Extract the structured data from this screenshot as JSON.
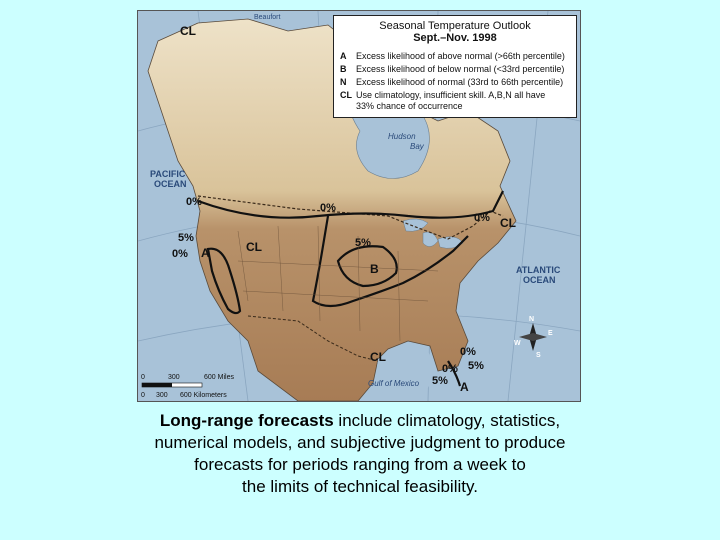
{
  "legend": {
    "title": "Seasonal Temperature Outlook",
    "subtitle": "Sept.–Nov. 1998",
    "items": [
      {
        "code": "A",
        "desc": "Excess likelihood of above normal (>66th percentile)"
      },
      {
        "code": "B",
        "desc": "Excess likelihood of below normal (<33rd percentile)"
      },
      {
        "code": "N",
        "desc": "Excess likelihood of normal (33rd to 66th percentile)"
      },
      {
        "code": "CL",
        "desc": "Use climatology, insufficient skill. A,B,N all have"
      }
    ],
    "continuation": "33% chance of occurrence"
  },
  "map": {
    "water_labels": {
      "pacific": [
        "PACIFIC",
        "OCEAN"
      ],
      "atlantic": [
        "ATLANTIC",
        "OCEAN"
      ],
      "hudson": [
        "Hudson",
        "Bay"
      ],
      "gulf": "Gulf of Mexico",
      "beaufort": "Beaufort"
    },
    "zone_labels": {
      "cl_northwest": "CL",
      "cl_west": "CL",
      "cl_east": "CL",
      "cl_south": "CL",
      "a_west": "A",
      "b_central": "B",
      "a_south": "A"
    },
    "percent_labels": {
      "p_pac_0": "0%",
      "p_west_5": "5%",
      "p_west_0": "0%",
      "p_north_0": "0%",
      "p_east_0": "0%",
      "p_central_5": "5%",
      "p_gulf_0a": "0%",
      "p_gulf_5a": "5%",
      "p_gulf_0b": "0%",
      "p_gulf_5b": "5%"
    },
    "compass": {
      "n": "N",
      "e": "E",
      "s": "S",
      "w": "W"
    },
    "scale": {
      "miles_ticks": [
        "0",
        "300",
        "600 Miles"
      ],
      "km_ticks": [
        "0",
        "300",
        "600 Kilometers"
      ]
    },
    "colors": {
      "ocean": "#a8c2d8",
      "land_north": "#e6d8b8",
      "land_south": "#b08a64",
      "contour": "#111111",
      "border": "#3a2a1a"
    }
  },
  "caption": {
    "bold": "Long-range forecasts",
    "line1_rest": " include climatology, statistics,",
    "line2": "numerical models, and subjective judgment to produce",
    "line3": "forecasts for periods ranging from a week to",
    "line4": "the limits of technical feasibility."
  }
}
